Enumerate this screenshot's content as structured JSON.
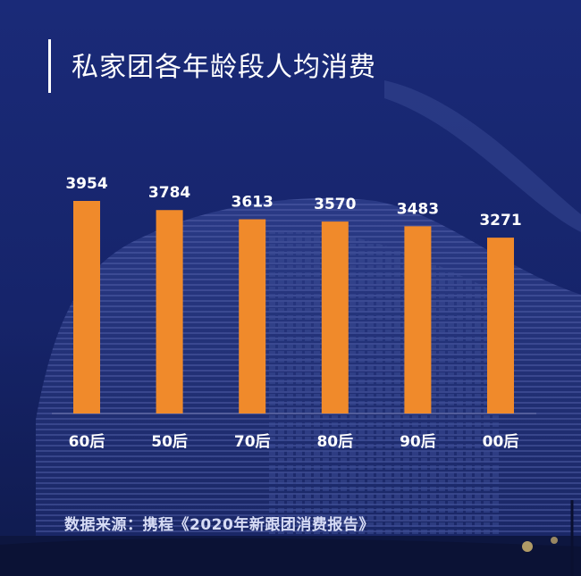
{
  "title": "私家团各年龄段人均消费",
  "source": "数据来源：携程《2020年新跟团消费报告》",
  "colors": {
    "bar": "#f08a2b",
    "background": "#15246a",
    "text": "#ffffff"
  },
  "chart_data": {
    "type": "bar",
    "title": "私家团各年龄段人均消费",
    "categories": [
      "60后",
      "50后",
      "70后",
      "80后",
      "90后",
      "00后"
    ],
    "values": [
      3954,
      3784,
      3613,
      3570,
      3483,
      3271
    ],
    "xlabel": "",
    "ylabel": "",
    "ylim": [
      0,
      4000
    ],
    "grid": false
  }
}
